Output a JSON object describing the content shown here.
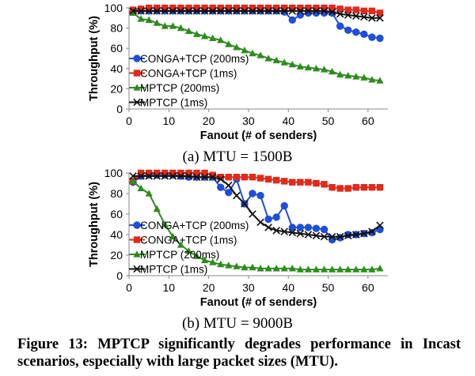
{
  "chart_data": [
    {
      "type": "line",
      "caption": "(a) MTU = 1500B",
      "xlabel": "Fanout (# of senders)",
      "ylabel": "Throughput (%)",
      "xlim": [
        0,
        65
      ],
      "ylim": [
        0,
        100
      ],
      "xticks": [
        0,
        10,
        20,
        30,
        40,
        50,
        60
      ],
      "yticks": [
        0,
        20,
        40,
        60,
        80,
        100
      ],
      "legend_position": "lower-left",
      "series": [
        {
          "name": "CONGA+TCP (200ms)",
          "color": "#1f4fd8",
          "marker": "circle",
          "x": [
            1,
            3,
            5,
            7,
            9,
            11,
            13,
            15,
            17,
            19,
            21,
            23,
            25,
            27,
            29,
            31,
            33,
            35,
            37,
            39,
            41,
            43,
            45,
            47,
            49,
            51,
            53,
            55,
            57,
            59,
            61,
            63
          ],
          "y": [
            96,
            97,
            97,
            97,
            97,
            97,
            97,
            97,
            97,
            97,
            97,
            97,
            97,
            97,
            97,
            97,
            97,
            97,
            97,
            96,
            88,
            93,
            95,
            95,
            95,
            95,
            82,
            78,
            76,
            74,
            71,
            70
          ]
        },
        {
          "name": "CONGA+TCP (1ms)",
          "color": "#e02a1b",
          "marker": "square",
          "x": [
            1,
            3,
            5,
            7,
            9,
            11,
            13,
            15,
            17,
            19,
            21,
            23,
            25,
            27,
            29,
            31,
            33,
            35,
            37,
            39,
            41,
            43,
            45,
            47,
            49,
            51,
            53,
            55,
            57,
            59,
            61,
            63
          ],
          "y": [
            98,
            99,
            100,
            100,
            100,
            100,
            100,
            100,
            100,
            100,
            100,
            100,
            100,
            100,
            100,
            100,
            100,
            100,
            100,
            100,
            100,
            100,
            100,
            100,
            100,
            100,
            99,
            98,
            98,
            97,
            97,
            95
          ]
        },
        {
          "name": "MPTCP (200ms)",
          "color": "#2e8b1e",
          "marker": "triangle",
          "x": [
            1,
            3,
            5,
            7,
            9,
            11,
            13,
            15,
            17,
            19,
            21,
            23,
            25,
            27,
            29,
            31,
            33,
            35,
            37,
            39,
            41,
            43,
            45,
            47,
            49,
            51,
            53,
            55,
            57,
            59,
            61,
            63
          ],
          "y": [
            95,
            89,
            88,
            85,
            82,
            82,
            80,
            77,
            74,
            72,
            70,
            68,
            64,
            61,
            58,
            55,
            53,
            50,
            48,
            46,
            44,
            42,
            41,
            40,
            39,
            37,
            34,
            33,
            32,
            31,
            29,
            28
          ]
        },
        {
          "name": "MPTCP (1ms)",
          "color": "#111111",
          "marker": "x",
          "x": [
            1,
            3,
            5,
            7,
            9,
            11,
            13,
            15,
            17,
            19,
            21,
            23,
            25,
            27,
            29,
            31,
            33,
            35,
            37,
            39,
            41,
            43,
            45,
            47,
            49,
            51,
            53,
            55,
            57,
            59,
            61,
            63
          ],
          "y": [
            97,
            97,
            97,
            97,
            97,
            97,
            97,
            97,
            97,
            97,
            97,
            97,
            97,
            97,
            97,
            97,
            97,
            97,
            97,
            97,
            97,
            97,
            97,
            97,
            97,
            96,
            94,
            93,
            92,
            91,
            90,
            90
          ]
        }
      ]
    },
    {
      "type": "line",
      "caption": "(b) MTU = 9000B",
      "xlabel": "Fanout (# of senders)",
      "ylabel": "Throughput (%)",
      "xlim": [
        0,
        65
      ],
      "ylim": [
        0,
        100
      ],
      "xticks": [
        0,
        10,
        20,
        30,
        40,
        50,
        60
      ],
      "yticks": [
        0,
        20,
        40,
        60,
        80,
        100
      ],
      "legend_position": "lower-left",
      "series": [
        {
          "name": "CONGA+TCP (200ms)",
          "color": "#1f4fd8",
          "marker": "circle",
          "x": [
            1,
            3,
            5,
            7,
            9,
            11,
            13,
            15,
            17,
            19,
            21,
            23,
            25,
            27,
            29,
            31,
            33,
            35,
            37,
            39,
            41,
            43,
            45,
            47,
            49,
            51,
            53,
            55,
            57,
            59,
            61,
            63
          ],
          "y": [
            91,
            97,
            98,
            98,
            98,
            98,
            97,
            96,
            96,
            96,
            96,
            86,
            81,
            94,
            70,
            80,
            78,
            55,
            57,
            68,
            47,
            47,
            47,
            46,
            45,
            35,
            37,
            40,
            40,
            41,
            42,
            45
          ]
        },
        {
          "name": "CONGA+TCP (1ms)",
          "color": "#e02a1b",
          "marker": "square",
          "x": [
            1,
            3,
            5,
            7,
            9,
            11,
            13,
            15,
            17,
            19,
            21,
            23,
            25,
            27,
            29,
            31,
            33,
            35,
            37,
            39,
            41,
            43,
            45,
            47,
            49,
            51,
            53,
            55,
            57,
            59,
            61,
            63
          ],
          "y": [
            92,
            100,
            100,
            100,
            100,
            100,
            100,
            100,
            100,
            100,
            98,
            96,
            96,
            96,
            96,
            96,
            95,
            94,
            93,
            92,
            91,
            91,
            91,
            90,
            89,
            86,
            85,
            85,
            86,
            86,
            86,
            86
          ]
        },
        {
          "name": "MPTCP (200ms)",
          "color": "#2e8b1e",
          "marker": "triangle",
          "x": [
            1,
            3,
            5,
            7,
            9,
            11,
            13,
            15,
            17,
            19,
            21,
            23,
            25,
            27,
            29,
            31,
            33,
            35,
            37,
            39,
            41,
            43,
            45,
            47,
            49,
            51,
            53,
            55,
            57,
            59,
            61,
            63
          ],
          "y": [
            92,
            85,
            80,
            65,
            50,
            38,
            30,
            24,
            19,
            15,
            13,
            11,
            10,
            9,
            8,
            8,
            7,
            7,
            7,
            7,
            7,
            6,
            6,
            6,
            6,
            6,
            6,
            6,
            6,
            6,
            6,
            7
          ]
        },
        {
          "name": "MPTCP (1ms)",
          "color": "#111111",
          "marker": "x",
          "x": [
            1,
            3,
            5,
            7,
            9,
            11,
            13,
            15,
            17,
            19,
            21,
            23,
            25,
            27,
            29,
            31,
            33,
            35,
            37,
            39,
            41,
            43,
            45,
            47,
            49,
            51,
            53,
            55,
            57,
            59,
            61,
            63
          ],
          "y": [
            97,
            97,
            97,
            97,
            97,
            97,
            97,
            97,
            96,
            96,
            96,
            94,
            88,
            78,
            70,
            60,
            52,
            47,
            44,
            43,
            42,
            41,
            40,
            39,
            38,
            38,
            38,
            39,
            40,
            41,
            43,
            49
          ]
        }
      ]
    }
  ],
  "figure_caption": {
    "label": "Figure 13:",
    "text": "MPTCP significantly degrades performance in Incast scenarios, especially with large packet sizes (MTU)."
  }
}
